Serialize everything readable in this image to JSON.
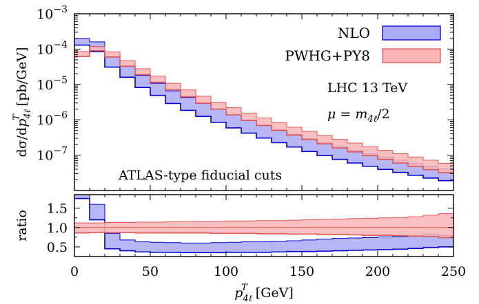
{
  "chart_data": [
    {
      "type": "area",
      "panel": "main",
      "ylabel": "dσ/dp^T_4ℓ [pb/GeV]",
      "yscale": "log",
      "ylim": [
        1e-08,
        0.001
      ],
      "xlim": [
        0,
        250
      ],
      "ytick_labels": [
        "10^-3",
        "10^-4",
        "10^-5",
        "10^-6",
        "10^-7"
      ],
      "annotations": [
        "LHC 13 TeV",
        "μ = m_4ℓ/2",
        "ATLAS-type fiducial cuts"
      ],
      "legend_position": "top-right",
      "x_bin_edges": [
        0,
        10,
        20,
        30,
        40,
        50,
        60,
        70,
        80,
        90,
        100,
        110,
        120,
        130,
        140,
        150,
        160,
        170,
        180,
        190,
        200,
        210,
        220,
        230,
        240,
        250
      ],
      "series": [
        {
          "name": "NLO",
          "color": "#0000cc",
          "fill": "#aaaaf5",
          "low": [
            0.00013,
            8.5e-05,
            3.1e-05,
            1.6e-05,
            8.2e-06,
            4.9e-06,
            2.9e-06,
            1.85e-06,
            1.25e-06,
            8.5e-07,
            5.9e-07,
            4.2e-07,
            3.05e-07,
            2.25e-07,
            1.7e-07,
            1.27e-07,
            9.8e-08,
            7.6e-08,
            6e-08,
            4.85e-08,
            3.95e-08,
            3.25e-08,
            2.7e-08,
            2.25e-08,
            1.9e-08
          ],
          "high": [
            0.0002,
            0.00016,
            6.1e-05,
            3.3e-05,
            1.8e-05,
            1.08e-05,
            6.6e-06,
            4.3e-06,
            2.9e-06,
            2e-06,
            1.38e-06,
            9.8e-07,
            7.1e-07,
            5.2e-07,
            3.9e-07,
            2.95e-07,
            2.25e-07,
            1.75e-07,
            1.37e-07,
            1.09e-07,
            8.8e-08,
            7.2e-08,
            5.9e-08,
            4.9e-08,
            4.1e-08
          ]
        },
        {
          "name": "PWHG+PY8",
          "color": "#e05555",
          "fill": "#f7b5b5",
          "low": [
            6.2e-05,
            9e-05,
            6e-05,
            3.3e-05,
            1.9e-05,
            1.15e-05,
            7.1e-06,
            4.5e-06,
            2.95e-06,
            2e-06,
            1.38e-06,
            9.6e-07,
            6.9e-07,
            5e-07,
            3.7e-07,
            2.75e-07,
            2.1e-07,
            1.6e-07,
            1.24e-07,
            9.7e-08,
            7.6e-08,
            6e-08,
            4.8e-08,
            3.9e-08,
            3.2e-08
          ],
          "high": [
            8.5e-05,
            0.000118,
            8.3e-05,
            4.7e-05,
            2.8e-05,
            1.72e-05,
            1.08e-05,
            7e-06,
            4.65e-06,
            3.15e-06,
            2.2e-06,
            1.55e-06,
            1.13e-06,
            8.3e-07,
            6.2e-07,
            4.7e-07,
            3.6e-07,
            2.8e-07,
            2.2e-07,
            1.73e-07,
            1.37e-07,
            1.1e-07,
            8.9e-08,
            7.2e-08,
            5.9e-08
          ]
        }
      ]
    },
    {
      "type": "area",
      "panel": "ratio",
      "ylabel": "ratio",
      "ylim": [
        0.25,
        1.85
      ],
      "xlim": [
        0,
        250
      ],
      "xlabel": "p^T_4ℓ [GeV]",
      "xtick_labels": [
        "0",
        "50",
        "100",
        "150",
        "200",
        "250"
      ],
      "ytick_labels": [
        "0.5",
        "1.0",
        "1.5"
      ],
      "x_bin_edges": [
        0,
        10,
        20,
        30,
        40,
        50,
        60,
        70,
        80,
        90,
        100,
        110,
        120,
        130,
        140,
        150,
        160,
        170,
        180,
        190,
        200,
        210,
        220,
        230,
        240,
        250
      ],
      "series": [
        {
          "name": "NLO",
          "color": "#0000cc",
          "fill": "#aaaaf5",
          "low": [
            1.75,
            1.2,
            0.45,
            0.4,
            0.37,
            0.36,
            0.36,
            0.35,
            0.35,
            0.35,
            0.36,
            0.36,
            0.36,
            0.37,
            0.38,
            0.38,
            0.39,
            0.4,
            0.41,
            0.42,
            0.43,
            0.44,
            0.46,
            0.48,
            0.5
          ],
          "high": [
            1.85,
            1.6,
            0.85,
            0.68,
            0.63,
            0.62,
            0.61,
            0.6,
            0.6,
            0.61,
            0.62,
            0.63,
            0.63,
            0.64,
            0.66,
            0.68,
            0.7,
            0.72,
            0.73,
            0.74,
            0.76,
            0.77,
            0.78,
            0.83,
            0.8
          ]
        },
        {
          "name": "PWHG+PY8",
          "color": "#e05555",
          "fill": "#f7b5b5",
          "low": [
            0.86,
            0.87,
            0.87,
            0.87,
            0.86,
            0.86,
            0.86,
            0.86,
            0.86,
            0.85,
            0.85,
            0.85,
            0.84,
            0.84,
            0.83,
            0.83,
            0.82,
            0.82,
            0.81,
            0.8,
            0.8,
            0.79,
            0.78,
            0.77,
            0.74
          ],
          "high": [
            1.12,
            1.12,
            1.13,
            1.13,
            1.14,
            1.14,
            1.15,
            1.15,
            1.16,
            1.16,
            1.17,
            1.17,
            1.18,
            1.18,
            1.19,
            1.2,
            1.21,
            1.22,
            1.23,
            1.24,
            1.25,
            1.26,
            1.28,
            1.32,
            1.36
          ]
        }
      ]
    }
  ]
}
